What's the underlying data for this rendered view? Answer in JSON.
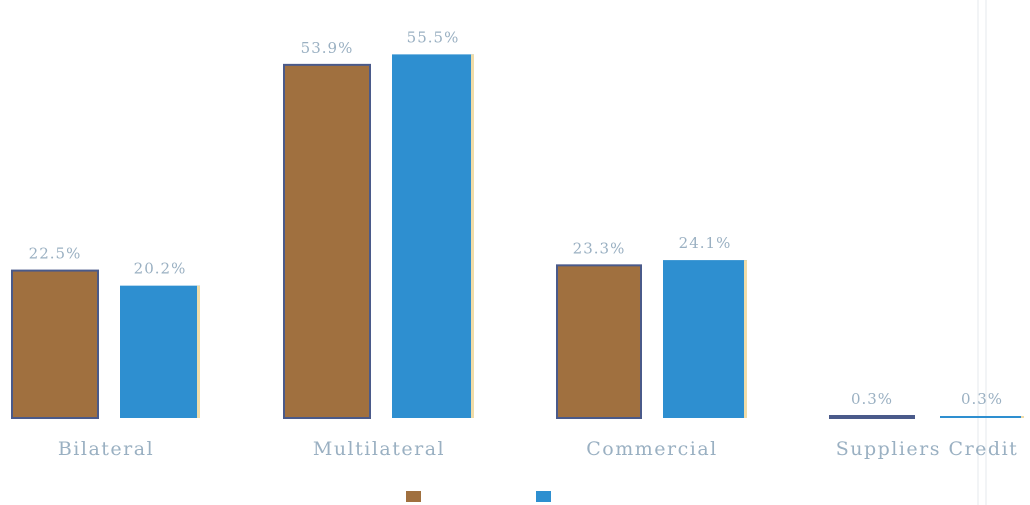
{
  "chart_data": {
    "type": "bar",
    "categories": [
      "Bilateral",
      "Multilateral",
      "Commercial",
      "Suppliers Credit"
    ],
    "series": [
      {
        "values": [
          22.5,
          53.9,
          23.3,
          0.3
        ],
        "labels": [
          "22.5%",
          "53.9%",
          "23.3%",
          "0.3%"
        ],
        "color": "#a0703f"
      },
      {
        "values": [
          20.2,
          55.5,
          24.1,
          0.3
        ],
        "labels": [
          "20.2%",
          "55.5%",
          "24.1%",
          "0.3%"
        ],
        "color": "#2e8fd0"
      }
    ],
    "ylim": [
      0,
      58
    ],
    "grid": false,
    "legend_position": "bottom-center",
    "colors": {
      "label": "#9ab0c2",
      "series1_outline": "#4a5a8a",
      "series2_edge": "#f0dca8"
    }
  }
}
